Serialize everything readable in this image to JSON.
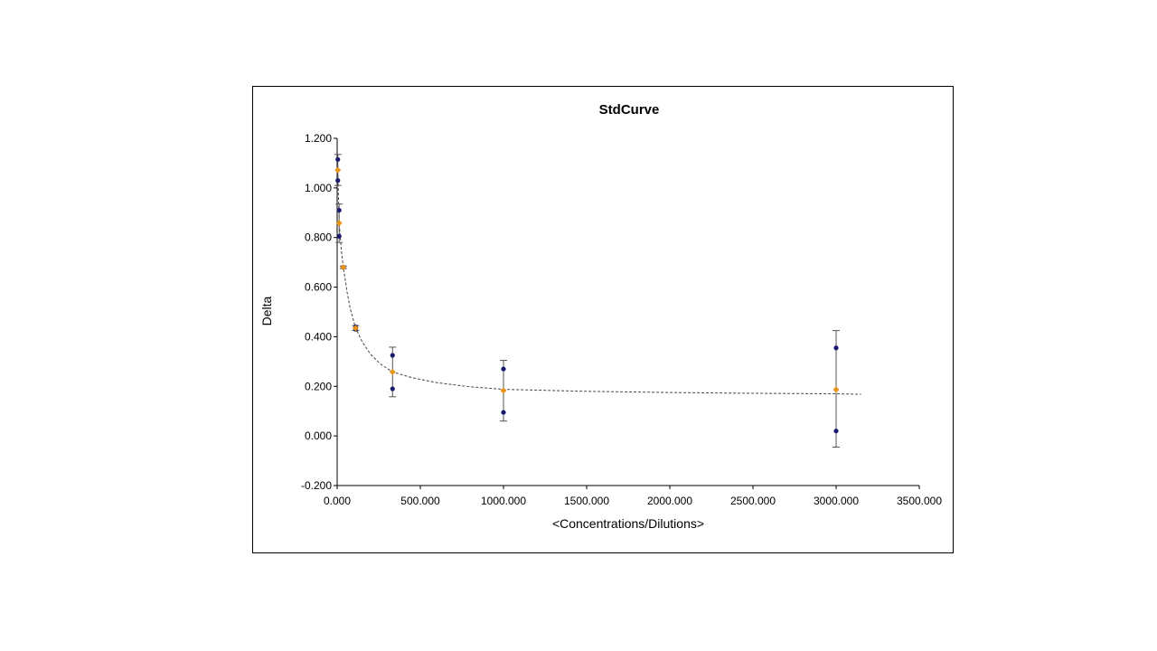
{
  "chart_data": {
    "type": "scatter",
    "title": "StdCurve",
    "xlabel": "<Concentrations/Dilutions>",
    "ylabel": "Delta",
    "xlim": [
      0,
      3500
    ],
    "ylim": [
      -0.2,
      1.2
    ],
    "x_ticks": [
      "0.000",
      "500.000",
      "1000.000",
      "1500.000",
      "2000.000",
      "2500.000",
      "3000.000",
      "3500.000"
    ],
    "y_ticks": [
      "-0.200",
      "0.000",
      "0.200",
      "0.400",
      "0.600",
      "0.800",
      "1.000",
      "1.200"
    ],
    "x_tick_values": [
      0,
      500,
      1000,
      1500,
      2000,
      2500,
      3000,
      3500
    ],
    "y_tick_values": [
      -0.2,
      0,
      0.2,
      0.4,
      0.6,
      0.8,
      1.0,
      1.2
    ],
    "grid": false,
    "legend": "none",
    "series": [
      {
        "color": "#1a1a6e",
        "marker": "circle",
        "points": [
          {
            "x": 4,
            "y": 1.115
          },
          {
            "x": 4,
            "y": 1.03
          },
          {
            "x": 12,
            "y": 0.91
          },
          {
            "x": 12,
            "y": 0.805
          },
          {
            "x": 37,
            "y": 0.68
          },
          {
            "x": 37,
            "y": 0.68
          },
          {
            "x": 111,
            "y": 0.44
          },
          {
            "x": 111,
            "y": 0.43
          },
          {
            "x": 333,
            "y": 0.325
          },
          {
            "x": 333,
            "y": 0.19
          },
          {
            "x": 1000,
            "y": 0.27
          },
          {
            "x": 1000,
            "y": 0.095
          },
          {
            "x": 3000,
            "y": 0.355
          },
          {
            "x": 3000,
            "y": 0.02
          }
        ]
      },
      {
        "color": "#e8941a",
        "marker": "diamond",
        "points": [
          {
            "x": 4,
            "y": 1.072,
            "err_low": 1.01,
            "err_high": 1.135
          },
          {
            "x": 12,
            "y": 0.858,
            "err_low": 0.78,
            "err_high": 0.935
          },
          {
            "x": 37,
            "y": 0.68,
            "err_low": 0.675,
            "err_high": 0.685
          },
          {
            "x": 111,
            "y": 0.435,
            "err_low": 0.425,
            "err_high": 0.445
          },
          {
            "x": 333,
            "y": 0.258,
            "err_low": 0.158,
            "err_high": 0.358
          },
          {
            "x": 1000,
            "y": 0.183,
            "err_low": 0.06,
            "err_high": 0.305
          },
          {
            "x": 3000,
            "y": 0.187,
            "err_low": -0.045,
            "err_high": 0.425
          }
        ]
      }
    ],
    "fit_line": {
      "style": "dashed",
      "color": "#444444",
      "points": [
        [
          4,
          1.072
        ],
        [
          12,
          0.858
        ],
        [
          25,
          0.75
        ],
        [
          37,
          0.68
        ],
        [
          60,
          0.58
        ],
        [
          80,
          0.51
        ],
        [
          111,
          0.435
        ],
        [
          150,
          0.38
        ],
        [
          200,
          0.33
        ],
        [
          260,
          0.29
        ],
        [
          333,
          0.258
        ],
        [
          450,
          0.235
        ],
        [
          600,
          0.215
        ],
        [
          800,
          0.198
        ],
        [
          1000,
          0.188
        ],
        [
          1500,
          0.18
        ],
        [
          2000,
          0.175
        ],
        [
          2500,
          0.172
        ],
        [
          3000,
          0.17
        ],
        [
          3150,
          0.168
        ]
      ]
    }
  }
}
